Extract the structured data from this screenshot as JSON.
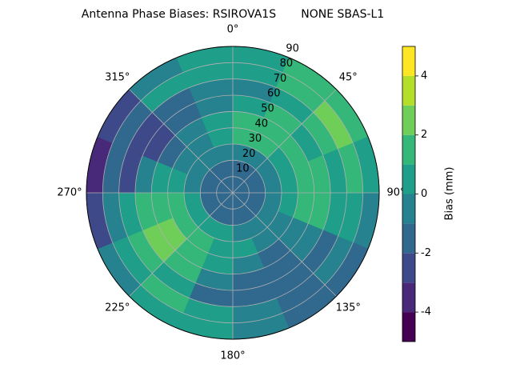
{
  "chart_data": {
    "type": "polar-contour",
    "title": "Antenna Phase Biases: RSIROVA1S       NONE SBAS-L1",
    "theta_edges": [
      0,
      22.5,
      45,
      67.5,
      90,
      112.5,
      135,
      157.5,
      180,
      202.5,
      225,
      247.5,
      270,
      292.5,
      315,
      337.5,
      360
    ],
    "r_edges": [
      0,
      10,
      20,
      30,
      40,
      50,
      60,
      70,
      80,
      90
    ],
    "values": [
      [
        -1.5,
        -1.5,
        -1.5,
        -1.5,
        -1.5,
        -1.5,
        -1.5,
        -1.5,
        -1.5,
        -1.5,
        -1.5,
        -1.5,
        -1.5,
        -1.5,
        -1.5,
        -1.5
      ],
      [
        -1.5,
        -1.5,
        -1.5,
        -1.5,
        -1.5,
        -1.5,
        -1.5,
        -1.5,
        -1.5,
        -1.5,
        -1.5,
        -1.5,
        -1.5,
        -1.5,
        -1.5,
        -1.5
      ],
      [
        -0.5,
        -0.5,
        -0.5,
        -0.5,
        -0.5,
        -0.5,
        -0.5,
        -0.5,
        0.5,
        0.5,
        0.5,
        0.5,
        -0.5,
        -0.5,
        -0.5,
        -0.5
      ],
      [
        1.5,
        1.5,
        0.5,
        0.5,
        0.5,
        -0.5,
        -0.5,
        0.5,
        0.5,
        1.5,
        1.5,
        1.5,
        0.5,
        -0.5,
        -0.5,
        0.5
      ],
      [
        1.5,
        1.5,
        1.5,
        1.5,
        1.5,
        -0.5,
        -1.5,
        -0.5,
        0.5,
        1.5,
        2.5,
        1.5,
        0.5,
        -1.5,
        -0.5,
        0.5
      ],
      [
        0.5,
        1.5,
        0.5,
        1.5,
        1.5,
        -0.5,
        -1.5,
        -1.5,
        -0.5,
        1.5,
        2.5,
        1.5,
        -0.5,
        -2.5,
        -1.5,
        -0.5
      ],
      [
        -0.5,
        0.5,
        1.5,
        0.5,
        0.5,
        -1.5,
        -1.5,
        -1.5,
        -1.5,
        0.5,
        1.5,
        0.5,
        -2.5,
        -2.5,
        -1.5,
        -0.5
      ],
      [
        0.5,
        1.5,
        2.5,
        1.5,
        0.5,
        -0.5,
        -1.5,
        -0.5,
        0.5,
        1.5,
        0.5,
        -0.5,
        -1.5,
        -1.5,
        0.5,
        0.5
      ],
      [
        0.5,
        1.5,
        1.5,
        0.5,
        -0.5,
        -1.5,
        -1.5,
        -0.5,
        0.5,
        0.5,
        -0.5,
        -2.5,
        -3.5,
        -2.5,
        -0.5,
        0.5
      ]
    ],
    "rlim": [
      0,
      90
    ],
    "rticks": [
      10,
      20,
      30,
      40,
      50,
      60,
      70,
      80,
      90
    ],
    "thetaticks": [
      {
        "value": 0,
        "label": "0°"
      },
      {
        "value": 45,
        "label": "45°"
      },
      {
        "value": 90,
        "label": "90°"
      },
      {
        "value": 135,
        "label": "135°"
      },
      {
        "value": 180,
        "label": "180°"
      },
      {
        "value": 225,
        "label": "225°"
      },
      {
        "value": 270,
        "label": "270°"
      },
      {
        "value": 315,
        "label": "315°"
      }
    ],
    "grid": true,
    "colorbar": {
      "label": "Bias (mm)",
      "levels": [
        -5,
        -4,
        -3,
        -2,
        -1,
        0,
        1,
        2,
        3,
        4,
        5
      ],
      "colors": [
        "#440154",
        "#482878",
        "#3e4989",
        "#31688e",
        "#26828e",
        "#1f9e89",
        "#35b779",
        "#6ece58",
        "#b5de2b",
        "#fde725"
      ],
      "ticks": [
        -4,
        -2,
        0,
        2,
        4
      ]
    }
  }
}
